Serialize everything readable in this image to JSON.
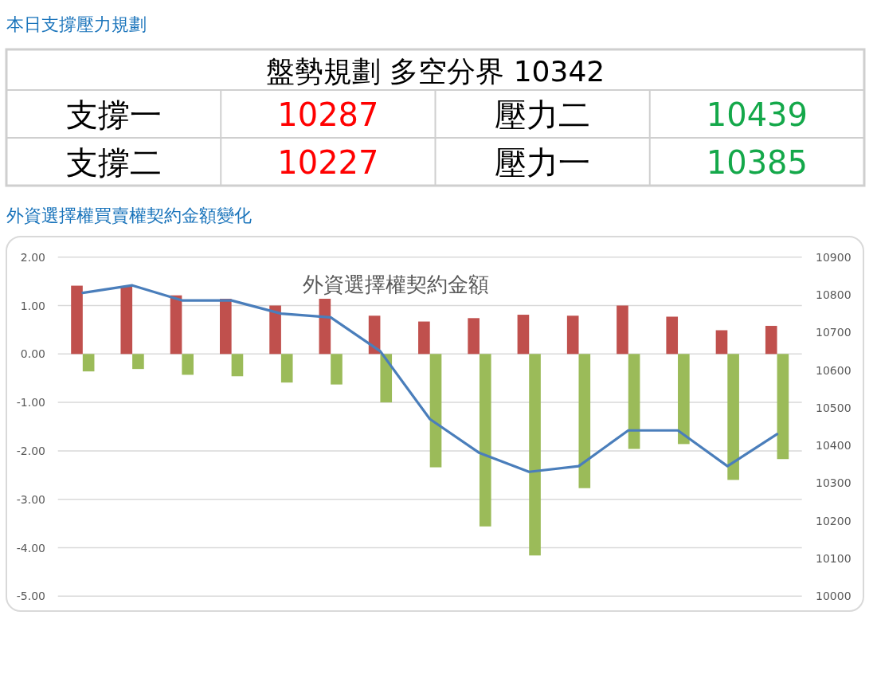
{
  "chart_data": [
    {
      "type": "other",
      "title": "本日支撐壓力規劃",
      "annotations": [
        "盤勢規劃 多空分界 10342",
        "支撐一",
        "10287",
        "壓力二",
        "10439",
        "支撐二",
        "10227",
        "壓力一",
        "10385"
      ]
    },
    {
      "type": "bar",
      "title": "外資選擇權買賣權契約金額變化",
      "subtitle": "外資選擇權契約金額",
      "categories": [
        null,
        null,
        null,
        null,
        null,
        null,
        null,
        null,
        null,
        null,
        null,
        null,
        null,
        null,
        null
      ],
      "series": [
        {
          "color": "#c0504d",
          "values": [
            1.41,
            1.39,
            1.21,
            1.14,
            1.0,
            1.14,
            0.79,
            0.67,
            0.74,
            0.81,
            0.79,
            1.0,
            0.77,
            0.49,
            0.58
          ]
        },
        {
          "color": "#9bbb59",
          "values": [
            -0.36,
            -0.31,
            -0.43,
            -0.46,
            -0.59,
            -0.63,
            -1.0,
            -2.34,
            -3.56,
            -4.16,
            -2.77,
            -1.96,
            -1.86,
            -2.6,
            -2.17
          ]
        },
        {
          "type": "line",
          "axis": "y2",
          "color": "#4a7ebb",
          "values": [
            10805,
            10825,
            10785,
            10785,
            10750,
            10740,
            10650,
            10470,
            10380,
            10330,
            10345,
            10440,
            10440,
            10345,
            10430
          ]
        }
      ],
      "ylim": [
        -5,
        2
      ],
      "yticks": [
        {
          "value": -5,
          "label": "-5.00"
        },
        {
          "value": -4,
          "label": "-4.00"
        },
        {
          "value": -3,
          "label": "-3.00"
        },
        {
          "value": -2,
          "label": "-2.00"
        },
        {
          "value": -1,
          "label": "-1.00"
        },
        {
          "value": 0,
          "label": "0.00"
        },
        {
          "value": 1,
          "label": "1.00"
        },
        {
          "value": 2,
          "label": "2.00"
        }
      ],
      "y2lim": [
        10000,
        10900
      ],
      "y2ticks": [
        10000,
        10100,
        10200,
        10300,
        10400,
        10500,
        10600,
        10700,
        10800,
        10900
      ],
      "grid": "y"
    }
  ]
}
